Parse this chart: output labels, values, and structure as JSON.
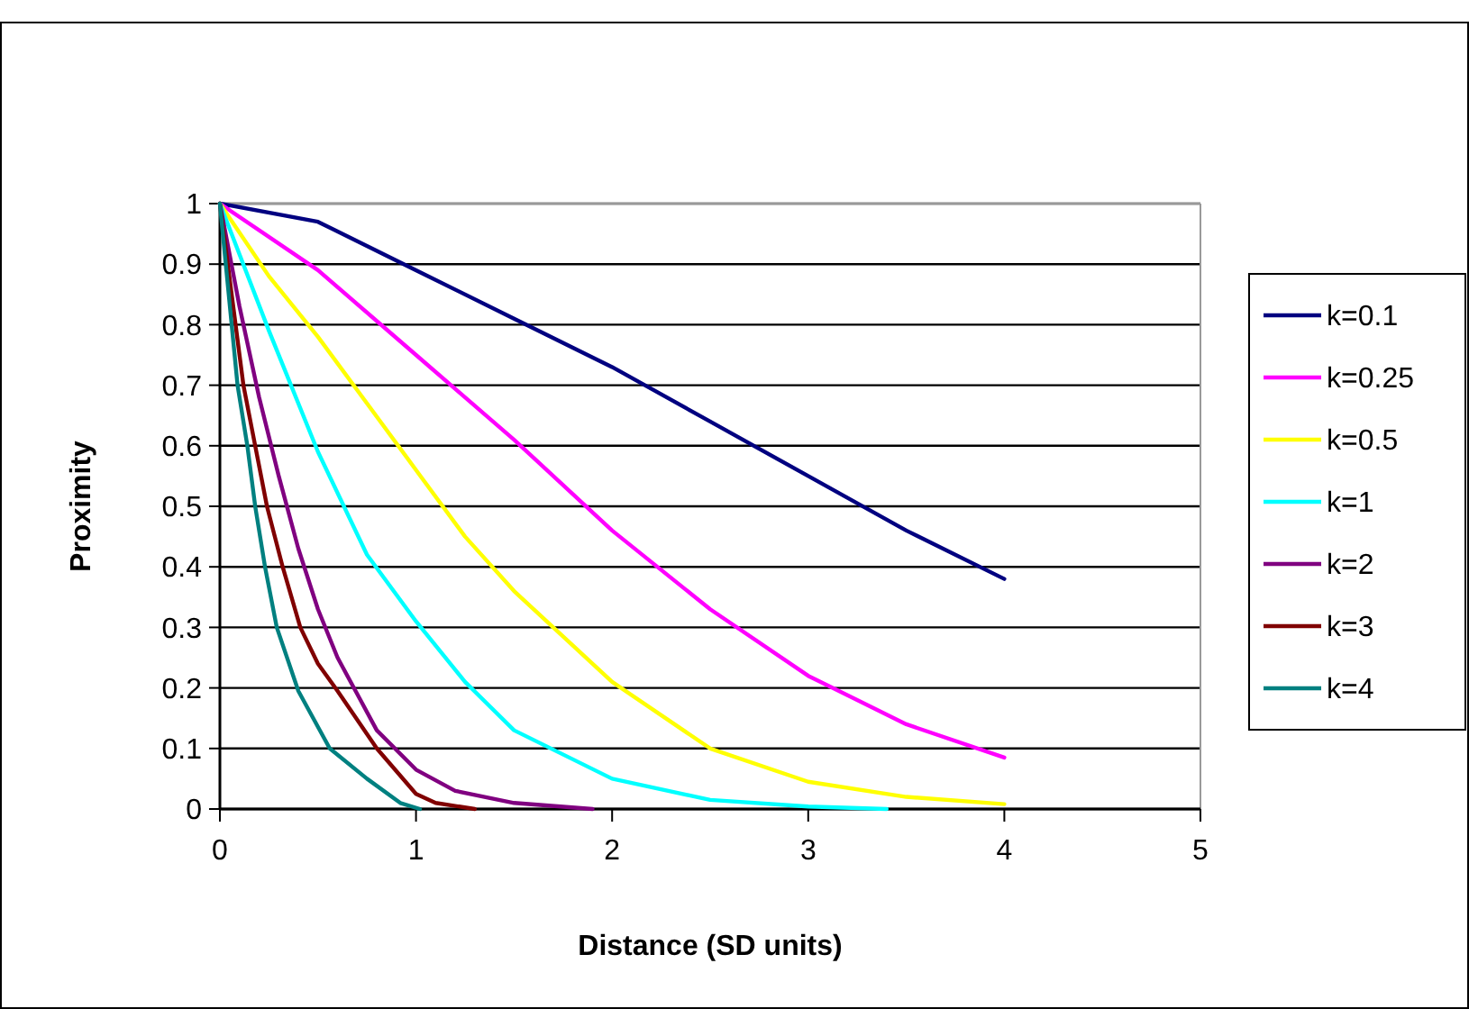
{
  "chart_data": {
    "type": "line",
    "xlabel": "Distance (SD units)",
    "ylabel": "Proximity",
    "xlim": [
      0,
      5
    ],
    "xticks": [
      0,
      1,
      2,
      3,
      4,
      5
    ],
    "ylim": [
      0,
      1
    ],
    "yticks": [
      0,
      0.1,
      0.2,
      0.3,
      0.4,
      0.5,
      0.6,
      0.7,
      0.8,
      0.9,
      1
    ],
    "grid": "y",
    "legend": "right",
    "marker": "none",
    "line_style": "solid",
    "series": [
      {
        "name": "k=0.1",
        "color": "#000080",
        "x": [
          0,
          0.5,
          1,
          1.5,
          2,
          2.5,
          3,
          3.5,
          4
        ],
        "values": [
          1,
          0.97,
          0.89,
          0.81,
          0.73,
          0.64,
          0.55,
          0.46,
          0.38
        ]
      },
      {
        "name": "k=0.25",
        "color": "#ff00ff",
        "x": [
          0,
          0.5,
          1,
          1.5,
          2,
          2.5,
          3,
          3.5,
          4
        ],
        "values": [
          1,
          0.89,
          0.75,
          0.61,
          0.46,
          0.33,
          0.22,
          0.14,
          0.085
        ]
      },
      {
        "name": "k=0.5",
        "color": "#ffff00",
        "x": [
          0,
          0.25,
          0.5,
          0.75,
          1,
          1.25,
          1.5,
          2,
          2.5,
          3,
          3.5,
          4
        ],
        "values": [
          1,
          0.88,
          0.78,
          0.67,
          0.56,
          0.45,
          0.36,
          0.21,
          0.1,
          0.045,
          0.02,
          0.008
        ]
      },
      {
        "name": "k=1",
        "color": "#00ffff",
        "x": [
          0,
          0.25,
          0.5,
          0.75,
          1,
          1.25,
          1.5,
          2,
          2.5,
          3,
          3.4
        ],
        "values": [
          1,
          0.79,
          0.59,
          0.42,
          0.31,
          0.21,
          0.13,
          0.05,
          0.015,
          0.004,
          0
        ]
      },
      {
        "name": "k=2",
        "color": "#800080",
        "x": [
          0,
          0.1,
          0.2,
          0.3,
          0.4,
          0.5,
          0.6,
          0.7,
          0.8,
          1,
          1.2,
          1.5,
          1.9
        ],
        "values": [
          1,
          0.83,
          0.68,
          0.55,
          0.43,
          0.33,
          0.25,
          0.19,
          0.13,
          0.065,
          0.03,
          0.01,
          0
        ]
      },
      {
        "name": "k=3",
        "color": "#800000",
        "x": [
          0,
          0.12,
          0.18,
          0.24,
          0.32,
          0.41,
          0.5,
          0.6,
          0.8,
          1,
          1.1,
          1.3
        ],
        "values": [
          1,
          0.7,
          0.6,
          0.5,
          0.4,
          0.3,
          0.24,
          0.195,
          0.1,
          0.025,
          0.01,
          0
        ]
      },
      {
        "name": "k=4",
        "color": "#008080",
        "x": [
          0,
          0.09,
          0.14,
          0.18,
          0.23,
          0.29,
          0.4,
          0.56,
          0.75,
          0.92,
          1.02
        ],
        "values": [
          1,
          0.7,
          0.6,
          0.5,
          0.4,
          0.3,
          0.195,
          0.1,
          0.05,
          0.01,
          0
        ]
      }
    ]
  }
}
